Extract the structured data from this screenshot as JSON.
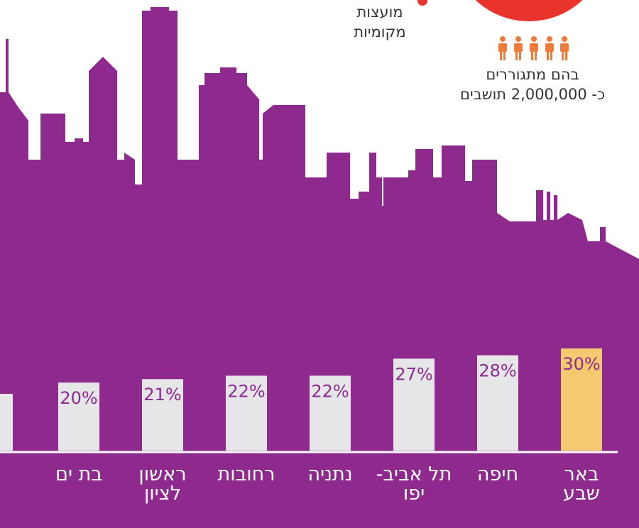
{
  "chart_data": {
    "type": "bar",
    "annotations": [
      "מועצות",
      "מקומיות",
      "בהם מתגוררים",
      "כ- 2,000,000 תושבים"
    ],
    "categories": [
      "באר\nשבע",
      "חיפה",
      "תל אביב-\nיפו",
      "נתניה",
      "רחובות",
      "ראשון\nלציון",
      "בת ים"
    ],
    "values": [
      30,
      28,
      27,
      22,
      22,
      21,
      20
    ],
    "value_labels": [
      "30%",
      "28%",
      "27%",
      "22%",
      "22%",
      "21%",
      "20%"
    ],
    "colors": [
      "#f5c96f",
      "#e6e6e8",
      "#e6e6e8",
      "#e6e6e8",
      "#e6e6e8",
      "#e6e6e8",
      "#e6e6e8"
    ]
  }
}
